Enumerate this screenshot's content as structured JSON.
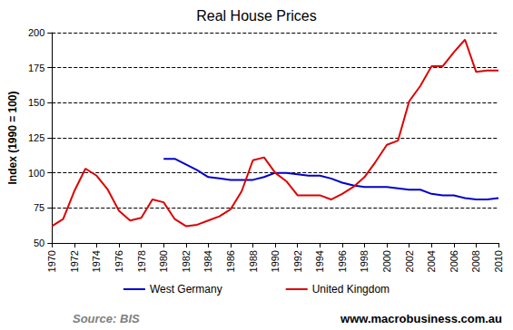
{
  "chart_data": {
    "type": "line",
    "title": "Real House Prices",
    "y_label": "Index (1990 = 100)",
    "x": [
      1970,
      1971,
      1972,
      1973,
      1974,
      1975,
      1976,
      1977,
      1978,
      1979,
      1980,
      1981,
      1982,
      1983,
      1984,
      1985,
      1986,
      1987,
      1988,
      1989,
      1990,
      1991,
      1992,
      1993,
      1994,
      1995,
      1996,
      1997,
      1998,
      1999,
      2000,
      2001,
      2002,
      2003,
      2004,
      2005,
      2006,
      2007,
      2008,
      2009,
      2010
    ],
    "series": [
      {
        "name": "West Germany",
        "color": "#0000cc",
        "values": [
          null,
          null,
          null,
          null,
          null,
          null,
          null,
          null,
          null,
          null,
          110,
          110,
          106,
          102,
          97,
          96,
          95,
          95,
          95,
          97,
          100,
          100,
          99,
          98,
          98,
          96,
          93,
          91,
          90,
          90,
          90,
          89,
          88,
          88,
          85,
          84,
          84,
          82,
          81,
          81,
          82
        ]
      },
      {
        "name": "United Kingdom",
        "color": "#dd0000",
        "values": [
          62,
          67,
          87,
          103,
          98,
          88,
          73,
          66,
          68,
          81,
          79,
          67,
          62,
          63,
          66,
          69,
          74,
          87,
          109,
          111,
          100,
          94,
          84,
          84,
          84,
          81,
          85,
          90,
          97,
          108,
          120,
          123,
          151,
          162,
          176,
          176,
          186,
          195,
          172,
          173,
          173
        ]
      }
    ],
    "xlim": [
      1970,
      2010
    ],
    "xticks": [
      1970,
      1972,
      1974,
      1976,
      1978,
      1980,
      1982,
      1984,
      1986,
      1988,
      1990,
      1992,
      1994,
      1996,
      1998,
      2000,
      2002,
      2004,
      2006,
      2008,
      2010
    ],
    "ylim": [
      50,
      200
    ],
    "yticks": [
      50,
      75,
      100,
      125,
      150,
      175,
      200
    ],
    "grid": true,
    "legend": "bottom",
    "annotations": [
      {
        "text": "Source: BIS"
      },
      {
        "text": "www.macrobusiness.com.au"
      }
    ]
  }
}
